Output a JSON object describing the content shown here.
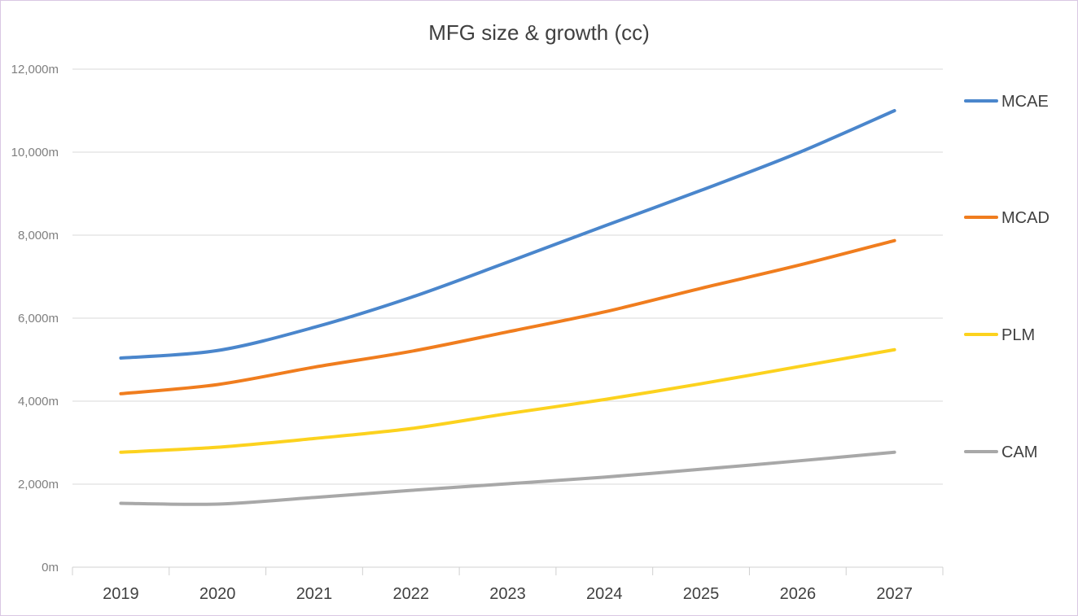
{
  "chart_data": {
    "type": "line",
    "title": "MFG size & growth (cc)",
    "xlabel": "",
    "ylabel": "",
    "categories": [
      "2019",
      "2020",
      "2021",
      "2022",
      "2023",
      "2024",
      "2025",
      "2026",
      "2027"
    ],
    "y_ticks": [
      "0m",
      "2,000m",
      "4,000m",
      "6,000m",
      "8,000m",
      "10,000m",
      "12,000m"
    ],
    "ylim": [
      0,
      12000
    ],
    "grid": true,
    "legend_position": "right",
    "series": [
      {
        "name": "MCAE",
        "color": "#4a86cc",
        "values": [
          5040,
          5220,
          5780,
          6500,
          7350,
          8220,
          9080,
          9980,
          11000
        ]
      },
      {
        "name": "MCAD",
        "color": "#f07d1e",
        "values": [
          4180,
          4400,
          4820,
          5200,
          5670,
          6150,
          6720,
          7270,
          7870
        ]
      },
      {
        "name": "PLM",
        "color": "#fcd21e",
        "values": [
          2770,
          2890,
          3100,
          3340,
          3700,
          4040,
          4420,
          4830,
          5240
        ]
      },
      {
        "name": "CAM",
        "color": "#a8a8a8",
        "values": [
          1540,
          1520,
          1680,
          1850,
          2010,
          2170,
          2360,
          2560,
          2770
        ]
      }
    ]
  }
}
